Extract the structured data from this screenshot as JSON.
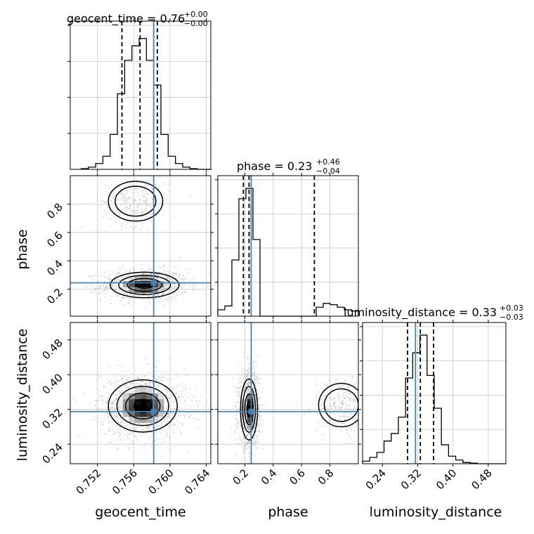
{
  "chart_data": {
    "type": "corner",
    "parameters": [
      "geocent_time",
      "phase",
      "luminosity_distance"
    ],
    "truths": {
      "geocent_time": 0.7582,
      "phase": 0.245,
      "luminosity_distance": 0.315
    },
    "titles": [
      {
        "param": "geocent_time",
        "main": "geocent_time = 0.76",
        "sup": "+0.00",
        "sub": "−0.00"
      },
      {
        "param": "phase",
        "main": "phase = 0.23",
        "sup": "+0.46",
        "sub": "−0.04"
      },
      {
        "param": "luminosity_distance",
        "main": "luminosity_distance = 0.33",
        "sup": "+0.03",
        "sub": "−0.03"
      }
    ],
    "axes": {
      "geocent_time": {
        "range": [
          0.749,
          0.7645
        ],
        "ticks": [
          "0.752",
          "0.756",
          "0.760",
          "0.764"
        ],
        "label": "geocent_time"
      },
      "phase": {
        "range": [
          0.01,
          1.0
        ],
        "ticks": [
          "0.2",
          "0.4",
          "0.6",
          "0.8"
        ],
        "label": "phase"
      },
      "luminosity_distance": {
        "range": [
          0.195,
          0.52
        ],
        "ticks": [
          "0.24",
          "0.32",
          "0.40",
          "0.48"
        ],
        "label": "luminosity_distance"
      }
    },
    "hist1d": [
      {
        "param": "geocent_time",
        "bin_edges": [
          0.7502,
          0.751,
          0.7518,
          0.7526,
          0.7534,
          0.7542,
          0.755,
          0.7558,
          0.7566,
          0.7574,
          0.7582,
          0.759,
          0.7598,
          0.7606,
          0.7614,
          0.7622,
          0.763,
          0.7638,
          0.7646
        ],
        "counts": [
          0.5,
          1.5,
          4,
          9,
          24,
          52,
          75,
          85,
          90,
          75,
          58,
          24,
          9,
          4,
          1.5,
          0.5,
          0,
          0
        ],
        "ymax": 102,
        "quantiles": [
          0.7547,
          0.7567,
          0.7586
        ]
      },
      {
        "param": "phase",
        "bin_edges": [
          0.01,
          0.0595,
          0.109,
          0.1585,
          0.208,
          0.2575,
          0.307,
          0.3565,
          0.406,
          0.4555,
          0.505,
          0.5545,
          0.604,
          0.6535,
          0.703,
          0.7525,
          0.802,
          0.8515,
          0.901,
          0.9505,
          1.0
        ],
        "counts": [
          5,
          8,
          44,
          92,
          100,
          60,
          0,
          0,
          0,
          0,
          0,
          0,
          0,
          0,
          7,
          10,
          9,
          7,
          5,
          4
        ],
        "ymax": 110,
        "quantiles": [
          0.19,
          0.23,
          0.69
        ]
      },
      {
        "param": "luminosity_distance",
        "bin_edges": [
          0.195,
          0.2112,
          0.2275,
          0.2437,
          0.26,
          0.2762,
          0.2925,
          0.3087,
          0.325,
          0.3412,
          0.3575,
          0.3737,
          0.39,
          0.4062,
          0.4225,
          0.4387,
          0.455,
          0.4712,
          0.4875,
          0.5037,
          0.52
        ],
        "counts": [
          2,
          5,
          9,
          18,
          24,
          37,
          68,
          88,
          102,
          70,
          44,
          15,
          6,
          3,
          1,
          0.5,
          0,
          0,
          0,
          0
        ],
        "ymax": 112,
        "quantiles": [
          0.297,
          0.326,
          0.356
        ]
      }
    ],
    "hist2d": [
      {
        "x": "geocent_time",
        "y": "phase",
        "modes": [
          {
            "x": 0.7572,
            "y": 0.23,
            "sx": 0.0019,
            "sy": 0.045,
            "w": 0.78
          },
          {
            "x": 0.7562,
            "y": 0.82,
            "sx": 0.0015,
            "sy": 0.07,
            "w": 0.22
          }
        ]
      },
      {
        "x": "geocent_time",
        "y": "luminosity_distance",
        "modes": [
          {
            "x": 0.757,
            "y": 0.328,
            "sx": 0.0019,
            "sy": 0.03,
            "w": 1.0
          }
        ]
      },
      {
        "x": "phase",
        "y": "luminosity_distance",
        "modes": [
          {
            "x": 0.23,
            "y": 0.32,
            "sx": 0.03,
            "sy": 0.035,
            "w": 0.78
          },
          {
            "x": 0.88,
            "y": 0.33,
            "sx": 0.08,
            "sy": 0.025,
            "w": 0.22
          }
        ]
      }
    ],
    "colors": {
      "truth": "#4682b4",
      "hist": "#000000",
      "grid": "#c8c8c8",
      "points": "#a0a0a0"
    },
    "grid": true
  }
}
